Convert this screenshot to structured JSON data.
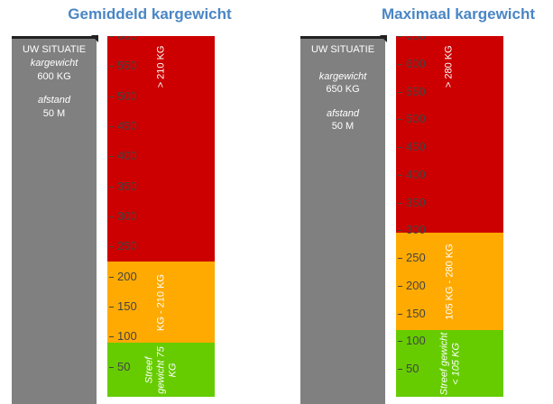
{
  "chart_data": [
    {
      "type": "stacked-scale",
      "title": "Gemiddeld kargewicht",
      "ylim": [
        0,
        600
      ],
      "yticks": [
        50,
        100,
        150,
        200,
        250,
        300,
        350,
        400,
        450,
        500,
        550,
        600
      ],
      "series": [
        {
          "name": "Streef gewicht 75 KG",
          "color": "#66cc00",
          "values": [
            90
          ]
        },
        {
          "name": "KG - 210 KG",
          "color": "#ffaa00",
          "values": [
            135
          ]
        },
        {
          "name": "> 210 KG",
          "color": "#cc0000",
          "values": [
            375
          ]
        }
      ],
      "situation": {
        "title": "UW SITUATIE",
        "weight_label": "kargewicht",
        "value": 600,
        "value_label": "600 KG",
        "distance_label": "afstand",
        "distance": "50 M",
        "color": "#808080"
      }
    },
    {
      "type": "stacked-scale",
      "title": "Maximaal kargewicht",
      "ylim": [
        0,
        650
      ],
      "yticks": [
        50,
        100,
        150,
        200,
        250,
        300,
        350,
        400,
        450,
        500,
        550,
        600,
        650
      ],
      "series": [
        {
          "name": "Streef gewicht < 105 KG",
          "color": "#66cc00",
          "values": [
            120
          ]
        },
        {
          "name": "105 KG - 280 KG",
          "color": "#ffaa00",
          "values": [
            175
          ]
        },
        {
          "name": "> 280 KG",
          "color": "#cc0000",
          "values": [
            355
          ]
        }
      ],
      "situation": {
        "title": "UW SITUATIE",
        "weight_label": "kargewicht",
        "value": 650,
        "value_label": "650 KG",
        "distance_label": "afstand",
        "distance": "50 M",
        "color": "#808080"
      }
    }
  ]
}
